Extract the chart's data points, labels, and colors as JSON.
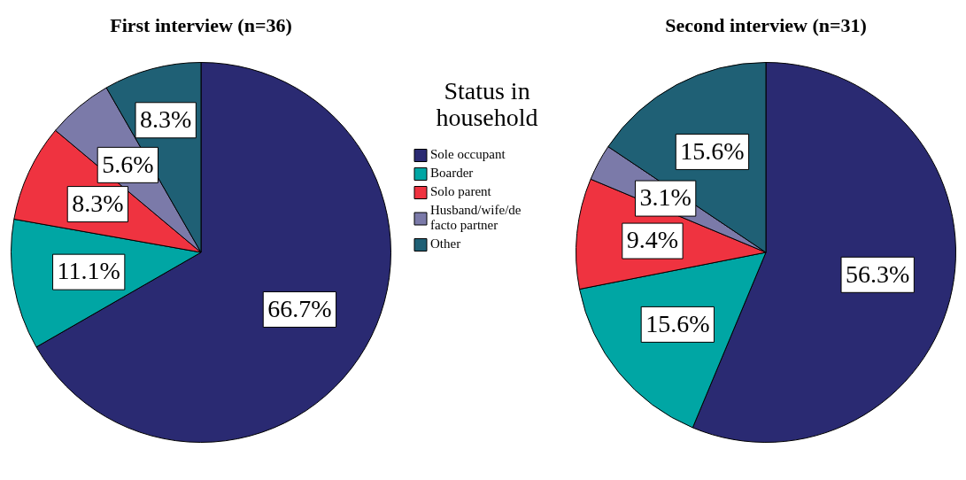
{
  "chart_data": {
    "type": "pie",
    "categories": [
      "Sole occupant",
      "Boarder",
      "Solo parent",
      "Husband/wife/de facto partner",
      "Other"
    ],
    "colors": [
      "#2a2a72",
      "#00a6a4",
      "#ef3340",
      "#7b7aa9",
      "#1f6075"
    ],
    "legend": "top",
    "legend_title": "Status in household",
    "series": [
      {
        "name": "First interview (n=36)",
        "values": [
          66.7,
          11.1,
          8.3,
          5.6,
          8.3
        ],
        "value_labels": [
          "66.7%",
          "11.1%",
          "8.3%",
          "5.6%",
          "8.3%"
        ]
      },
      {
        "name": "Second interview (n=31)",
        "values": [
          56.3,
          15.6,
          9.4,
          3.1,
          15.6
        ],
        "value_labels": [
          "56.3%",
          "15.6%",
          "9.4%",
          "3.1%",
          "15.6%"
        ]
      }
    ]
  }
}
